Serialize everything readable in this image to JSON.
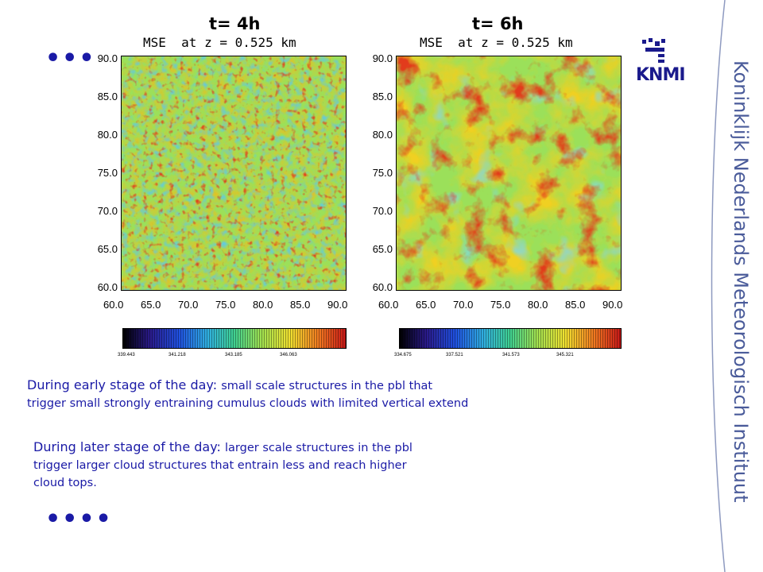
{
  "left_panel": {
    "title": "t= 4h",
    "subtitle": "MSE  at z = 0.525 km",
    "y_ticks": [
      "90.0",
      "85.0",
      "80.0",
      "75.0",
      "70.0",
      "65.0",
      "60.0"
    ],
    "x_ticks": [
      "60.0",
      "65.0",
      "70.0",
      "75.0",
      "80.0",
      "85.0",
      "90.0"
    ],
    "colorbar_labels": [
      "339.443",
      "341.218",
      "343.185",
      "346.063"
    ],
    "level": "early"
  },
  "right_panel": {
    "title": "t= 6h",
    "subtitle": "MSE  at z = 0.525 km",
    "y_ticks": [
      "90.0",
      "85.0",
      "80.0",
      "75.0",
      "70.0",
      "65.0",
      "60.0"
    ],
    "x_ticks": [
      "60.0",
      "65.0",
      "70.0",
      "75.0",
      "80.0",
      "85.0",
      "90.0"
    ],
    "colorbar_labels": [
      "334.675",
      "337.521",
      "341.573",
      "345.321"
    ],
    "level": "late"
  },
  "text": {
    "top_dots": "•••",
    "early_intro": "During early stage of the day: ",
    "early_body_1": "small scale structures in the pbl that",
    "early_body_2": "trigger small strongly entraining cumulus clouds with limited vertical extend",
    "late_intro": "During later stage of the day: ",
    "late_body_1": "larger scale structures in the pbl",
    "late_body_2": "trigger larger  cloud structures that entrain less and reach higher",
    "late_body_3": "cloud tops.",
    "bottom_dots": "••••"
  },
  "branding": {
    "logo_text": "KNMI",
    "vertical_text": "Koninklijk Nederlands Meteorologisch Instituut",
    "accent": "#1a1aa6",
    "logo_color": "#1a1a8c",
    "vertical_color": "#4a5b9a"
  },
  "colors": {
    "field_base": "#9be05a",
    "warm": "#f0d020",
    "hot": "#e83a1a",
    "cool": "#4fc8e0"
  }
}
